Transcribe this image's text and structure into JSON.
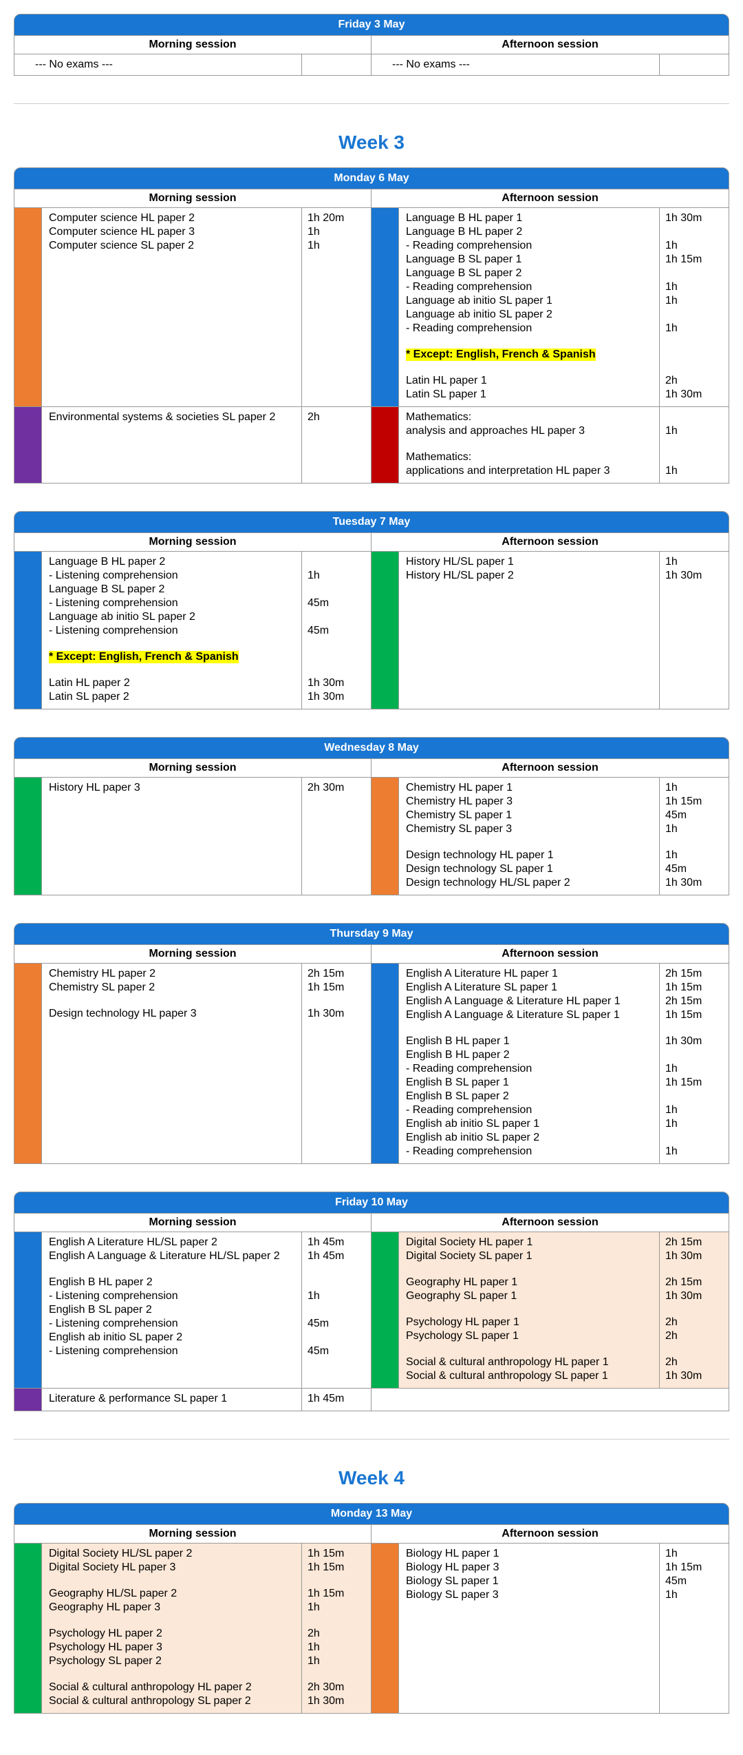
{
  "labels": {
    "morning": "Morning session",
    "afternoon": "Afternoon session",
    "no_exams": "--- No exams ---"
  },
  "colors": {
    "blue": "#1976d2",
    "orange": "#ed7d31",
    "purple": "#7030a0",
    "red": "#c00000",
    "green": "#00b050",
    "peach": "#fce8d8",
    "highlight": "#ffff00"
  },
  "weeks": [
    {
      "title": "",
      "days": [
        {
          "date": "Friday 3 May",
          "rows": [
            {
              "morning": {
                "noexam": true
              },
              "afternoon": {
                "noexam": true
              }
            }
          ]
        }
      ]
    },
    {
      "title": "Week 3",
      "days": [
        {
          "date": "Monday 6 May",
          "rows": [
            {
              "morning": {
                "color": "#ed7d31",
                "lines": [
                  {
                    "t": "Computer science HL paper 2",
                    "d": "1h 20m"
                  },
                  {
                    "t": "Computer science HL paper 3",
                    "d": "1h"
                  },
                  {
                    "t": "Computer science SL paper 2",
                    "d": "1h"
                  }
                ]
              },
              "afternoon": {
                "color": "#1976d2",
                "lines": [
                  {
                    "t": "Language B HL paper 1",
                    "d": "1h 30m"
                  },
                  {
                    "t": "Language B HL paper 2",
                    "d": ""
                  },
                  {
                    "t": "- Reading comprehension",
                    "d": "1h"
                  },
                  {
                    "t": "Language B SL paper 1",
                    "d": "1h 15m"
                  },
                  {
                    "t": "Language B SL paper 2",
                    "d": ""
                  },
                  {
                    "t": "- Reading comprehension",
                    "d": "1h"
                  },
                  {
                    "t": "Language ab initio SL paper 1",
                    "d": "1h"
                  },
                  {
                    "t": "Language ab initio SL paper 2",
                    "d": ""
                  },
                  {
                    "t": "- Reading comprehension",
                    "d": "1h"
                  },
                  {
                    "blank": true
                  },
                  {
                    "t": "* Except: English, French & Spanish",
                    "d": "",
                    "hl": true
                  },
                  {
                    "blank": true
                  },
                  {
                    "t": "Latin HL paper 1",
                    "d": "2h"
                  },
                  {
                    "t": "Latin SL paper 1",
                    "d": "1h 30m"
                  }
                ]
              }
            },
            {
              "morning": {
                "color": "#7030a0",
                "lines": [
                  {
                    "t": "Environmental systems & societies SL paper 2",
                    "d": "2h"
                  }
                ]
              },
              "afternoon": {
                "color": "#c00000",
                "lines": [
                  {
                    "t": "Mathematics:",
                    "d": ""
                  },
                  {
                    "t": "analysis and approaches HL paper 3",
                    "d": "1h"
                  },
                  {
                    "blank": true
                  },
                  {
                    "t": "Mathematics:",
                    "d": ""
                  },
                  {
                    "t": "applications and interpretation HL paper 3",
                    "d": "1h"
                  }
                ]
              }
            }
          ]
        },
        {
          "date": "Tuesday 7 May",
          "rows": [
            {
              "morning": {
                "color": "#1976d2",
                "lines": [
                  {
                    "t": "Language B HL paper 2",
                    "d": ""
                  },
                  {
                    "t": "- Listening comprehension",
                    "d": "1h"
                  },
                  {
                    "t": "Language B SL paper 2",
                    "d": ""
                  },
                  {
                    "t": "- Listening comprehension",
                    "d": "45m"
                  },
                  {
                    "t": "Language ab initio SL paper 2",
                    "d": ""
                  },
                  {
                    "t": "- Listening comprehension",
                    "d": "45m"
                  },
                  {
                    "blank": true
                  },
                  {
                    "t": "* Except: English, French & Spanish",
                    "d": "",
                    "hl": true
                  },
                  {
                    "blank": true
                  },
                  {
                    "t": "Latin HL paper 2",
                    "d": "1h 30m"
                  },
                  {
                    "t": "Latin SL paper 2",
                    "d": "1h 30m"
                  }
                ]
              },
              "afternoon": {
                "color": "#00b050",
                "lines": [
                  {
                    "t": "History HL/SL paper 1",
                    "d": "1h"
                  },
                  {
                    "t": "History HL/SL paper 2",
                    "d": "1h 30m"
                  }
                ]
              }
            }
          ]
        },
        {
          "date": "Wednesday 8 May",
          "rows": [
            {
              "morning": {
                "color": "#00b050",
                "lines": [
                  {
                    "t": "History HL paper 3",
                    "d": "2h 30m"
                  }
                ]
              },
              "afternoon": {
                "color": "#ed7d31",
                "lines": [
                  {
                    "t": "Chemistry HL paper 1",
                    "d": "1h"
                  },
                  {
                    "t": "Chemistry HL paper 3",
                    "d": "1h 15m"
                  },
                  {
                    "t": "Chemistry SL paper 1",
                    "d": "45m"
                  },
                  {
                    "t": "Chemistry SL paper 3",
                    "d": "1h"
                  },
                  {
                    "blank": true
                  },
                  {
                    "t": "Design technology HL paper 1",
                    "d": "1h"
                  },
                  {
                    "t": "Design technology SL paper 1",
                    "d": "45m"
                  },
                  {
                    "t": "Design technology HL/SL paper 2",
                    "d": "1h 30m"
                  }
                ]
              }
            }
          ]
        },
        {
          "date": "Thursday 9 May",
          "rows": [
            {
              "morning": {
                "color": "#ed7d31",
                "lines": [
                  {
                    "t": "Chemistry HL paper 2",
                    "d": "2h 15m"
                  },
                  {
                    "t": "Chemistry SL paper 2",
                    "d": "1h 15m"
                  },
                  {
                    "blank": true
                  },
                  {
                    "t": "Design technology HL paper 3",
                    "d": "1h 30m"
                  }
                ]
              },
              "afternoon": {
                "color": "#1976d2",
                "lines": [
                  {
                    "t": "English A Literature HL paper 1",
                    "d": "2h 15m"
                  },
                  {
                    "t": "English A Literature SL paper 1",
                    "d": "1h 15m"
                  },
                  {
                    "t": "English A Language & Literature HL paper 1",
                    "d": "2h 15m"
                  },
                  {
                    "t": "English A Language & Literature SL paper 1",
                    "d": "1h 15m"
                  },
                  {
                    "blank": true
                  },
                  {
                    "t": "English B HL paper 1",
                    "d": "1h 30m"
                  },
                  {
                    "t": "English B HL paper 2",
                    "d": ""
                  },
                  {
                    "t": "- Reading comprehension",
                    "d": "1h"
                  },
                  {
                    "t": "English B SL paper 1",
                    "d": "1h 15m"
                  },
                  {
                    "t": "English B SL paper 2",
                    "d": ""
                  },
                  {
                    "t": "- Reading comprehension",
                    "d": "1h"
                  },
                  {
                    "t": "English ab initio SL paper 1",
                    "d": "1h"
                  },
                  {
                    "t": "English ab initio SL paper 2",
                    "d": ""
                  },
                  {
                    "t": "- Reading comprehension",
                    "d": "1h"
                  }
                ]
              }
            }
          ]
        },
        {
          "date": "Friday 10 May",
          "rows": [
            {
              "morning": {
                "color": "#1976d2",
                "lines": [
                  {
                    "t": "English A Literature HL/SL paper 2",
                    "d": "1h 45m"
                  },
                  {
                    "t": "English A Language & Literature HL/SL paper 2",
                    "d": "1h 45m"
                  },
                  {
                    "blank": true
                  },
                  {
                    "t": "English B HL paper 2",
                    "d": ""
                  },
                  {
                    "t": "- Listening comprehension",
                    "d": "1h"
                  },
                  {
                    "t": "English B SL paper 2",
                    "d": ""
                  },
                  {
                    "t": "- Listening comprehension",
                    "d": "45m"
                  },
                  {
                    "t": "English ab initio SL paper 2",
                    "d": ""
                  },
                  {
                    "t": "- Listening comprehension",
                    "d": "45m"
                  }
                ]
              },
              "afternoon": {
                "color": "#00b050",
                "peach": true,
                "lines": [
                  {
                    "t": "Digital Society HL paper 1",
                    "d": "2h 15m"
                  },
                  {
                    "t": "Digital Society SL paper 1",
                    "d": "1h 30m"
                  },
                  {
                    "blank": true
                  },
                  {
                    "t": "Geography HL paper 1",
                    "d": "2h 15m"
                  },
                  {
                    "t": "Geography SL paper 1",
                    "d": "1h 30m"
                  },
                  {
                    "blank": true
                  },
                  {
                    "t": "Psychology HL paper 1",
                    "d": "2h"
                  },
                  {
                    "t": "Psychology SL paper 1",
                    "d": "2h"
                  },
                  {
                    "blank": true
                  },
                  {
                    "t": "Social & cultural anthropology HL paper 1",
                    "d": "2h"
                  },
                  {
                    "t": "Social & cultural anthropology SL paper 1",
                    "d": "1h 30m"
                  }
                ]
              }
            },
            {
              "morning": {
                "color": "#7030a0",
                "lines": [
                  {
                    "t": "Literature & performance SL paper 1",
                    "d": "1h 45m"
                  }
                ]
              },
              "afternoon": {
                "empty": true
              }
            }
          ]
        }
      ]
    },
    {
      "title": "Week 4",
      "days": [
        {
          "date": "Monday 13 May",
          "rows": [
            {
              "morning": {
                "color": "#00b050",
                "peach": true,
                "lines": [
                  {
                    "t": "Digital Society HL/SL paper 2",
                    "d": "1h 15m"
                  },
                  {
                    "t": "Digital Society HL paper 3",
                    "d": "1h 15m"
                  },
                  {
                    "blank": true
                  },
                  {
                    "t": "Geography HL/SL paper 2",
                    "d": "1h 15m"
                  },
                  {
                    "t": "Geography HL paper 3",
                    "d": "1h"
                  },
                  {
                    "blank": true
                  },
                  {
                    "t": "Psychology HL paper 2",
                    "d": "2h"
                  },
                  {
                    "t": "Psychology HL paper 3",
                    "d": "1h"
                  },
                  {
                    "t": "Psychology SL paper 2",
                    "d": "1h"
                  },
                  {
                    "blank": true
                  },
                  {
                    "t": "Social & cultural anthropology HL paper 2",
                    "d": "2h 30m"
                  },
                  {
                    "t": "Social & cultural anthropology SL paper 2",
                    "d": "1h 30m"
                  }
                ]
              },
              "afternoon": {
                "color": "#ed7d31",
                "lines": [
                  {
                    "t": "Biology HL paper 1",
                    "d": "1h"
                  },
                  {
                    "t": "Biology HL paper 3",
                    "d": "1h 15m"
                  },
                  {
                    "t": "Biology SL paper 1",
                    "d": "45m"
                  },
                  {
                    "t": "Biology SL paper 3",
                    "d": "1h"
                  }
                ]
              }
            }
          ]
        }
      ]
    }
  ]
}
